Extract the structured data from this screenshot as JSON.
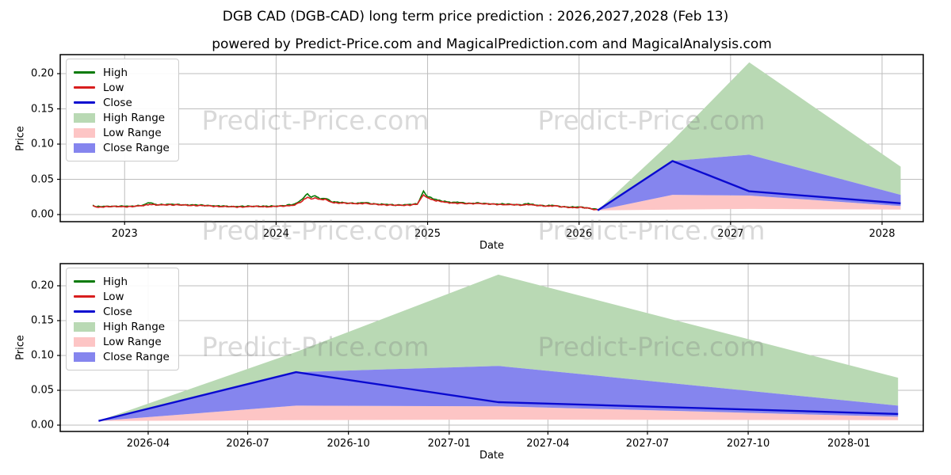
{
  "title": "DGB CAD (DGB-CAD) long term price prediction : 2026,2027,2028 (Feb 13)",
  "subtitle": "powered by Predict-Price.com and MagicalPrediction.com and MagicalAnalysis.com",
  "watermark": "Predict-Price.com",
  "colors": {
    "high_line": "#067a06",
    "low_line": "#d81e1e",
    "close_line": "#0a0ad0",
    "high_range_fill": "#b9d9b4",
    "low_range_fill": "#fdc5c5",
    "close_range_fill": "#8585ee",
    "grid": "#bdbdbd",
    "spine": "#000000",
    "watermark_gray": "#7a7a7a"
  },
  "legend": [
    {
      "label": "High",
      "swatch": "line",
      "color": "#067a06"
    },
    {
      "label": "Low",
      "swatch": "line",
      "color": "#d81e1e"
    },
    {
      "label": "Close",
      "swatch": "line",
      "color": "#0a0ad0"
    },
    {
      "label": "High Range",
      "swatch": "patch",
      "color": "#b9d9b4"
    },
    {
      "label": "Low Range",
      "swatch": "patch",
      "color": "#fdc5c5"
    },
    {
      "label": "Close Range",
      "swatch": "patch",
      "color": "#8585ee"
    }
  ],
  "chart_data": [
    {
      "type": "line",
      "name": "long-term-history-and-forecast",
      "xlabel": "Date",
      "ylabel": "Price",
      "x_axis": {
        "min": 2022.575,
        "max": 2028.272,
        "ticks": [
          {
            "t": 2023,
            "label": "2023"
          },
          {
            "t": 2024,
            "label": "2024"
          },
          {
            "t": 2025,
            "label": "2025"
          },
          {
            "t": 2026,
            "label": "2026"
          },
          {
            "t": 2027,
            "label": "2027"
          },
          {
            "t": 2028,
            "label": "2028"
          }
        ]
      },
      "y_axis": {
        "min": -0.0101,
        "max": 0.227,
        "ticks": [
          {
            "v": 0.0,
            "label": "0.00"
          },
          {
            "v": 0.05,
            "label": "0.05"
          },
          {
            "v": 0.1,
            "label": "0.10"
          },
          {
            "v": 0.15,
            "label": "0.15"
          },
          {
            "v": 0.2,
            "label": "0.20"
          }
        ]
      },
      "history": [
        [
          2022.79,
          0.013,
          0.0135
        ],
        [
          2022.815,
          0.0105,
          0.011
        ],
        [
          2022.873,
          0.011,
          0.0115
        ],
        [
          2022.957,
          0.0115,
          0.012
        ],
        [
          2023.04,
          0.011,
          0.0115
        ],
        [
          2023.123,
          0.013,
          0.0135
        ],
        [
          2023.165,
          0.0145,
          0.017
        ],
        [
          2023.207,
          0.0135,
          0.014
        ],
        [
          2023.29,
          0.014,
          0.0145
        ],
        [
          2023.373,
          0.0135,
          0.014
        ],
        [
          2023.457,
          0.013,
          0.0135
        ],
        [
          2023.54,
          0.0125,
          0.013
        ],
        [
          2023.623,
          0.0115,
          0.012
        ],
        [
          2023.707,
          0.011,
          0.0115
        ],
        [
          2023.79,
          0.011,
          0.0115
        ],
        [
          2023.873,
          0.0115,
          0.012
        ],
        [
          2023.957,
          0.011,
          0.0115
        ],
        [
          2024.04,
          0.012,
          0.0125
        ],
        [
          2024.123,
          0.0135,
          0.0145
        ],
        [
          2024.173,
          0.019,
          0.022
        ],
        [
          2024.207,
          0.025,
          0.03
        ],
        [
          2024.232,
          0.022,
          0.024
        ],
        [
          2024.257,
          0.024,
          0.027
        ],
        [
          2024.29,
          0.021,
          0.022
        ],
        [
          2024.323,
          0.0215,
          0.0235
        ],
        [
          2024.373,
          0.017,
          0.018
        ],
        [
          2024.457,
          0.016,
          0.0165
        ],
        [
          2024.54,
          0.0155,
          0.016
        ],
        [
          2024.582,
          0.016,
          0.017
        ],
        [
          2024.623,
          0.015,
          0.0155
        ],
        [
          2024.707,
          0.014,
          0.0145
        ],
        [
          2024.79,
          0.013,
          0.0135
        ],
        [
          2024.873,
          0.0135,
          0.014
        ],
        [
          2024.932,
          0.0145,
          0.015
        ],
        [
          2024.973,
          0.028,
          0.033
        ],
        [
          2024.998,
          0.024,
          0.026
        ],
        [
          2025.023,
          0.022,
          0.0235
        ],
        [
          2025.057,
          0.0195,
          0.021
        ],
        [
          2025.09,
          0.0185,
          0.0195
        ],
        [
          2025.123,
          0.017,
          0.0185
        ],
        [
          2025.165,
          0.0165,
          0.017
        ],
        [
          2025.207,
          0.016,
          0.0175
        ],
        [
          2025.248,
          0.0155,
          0.016
        ],
        [
          2025.29,
          0.0155,
          0.016
        ],
        [
          2025.332,
          0.016,
          0.0165
        ],
        [
          2025.373,
          0.015,
          0.0155
        ],
        [
          2025.457,
          0.0145,
          0.015
        ],
        [
          2025.54,
          0.014,
          0.0145
        ],
        [
          2025.623,
          0.0135,
          0.014
        ],
        [
          2025.665,
          0.0145,
          0.0155
        ],
        [
          2025.707,
          0.013,
          0.0135
        ],
        [
          2025.79,
          0.012,
          0.0125
        ],
        [
          2025.832,
          0.0125,
          0.013
        ],
        [
          2025.873,
          0.011,
          0.0115
        ],
        [
          2025.915,
          0.0105,
          0.011
        ],
        [
          2025.957,
          0.01,
          0.0105
        ],
        [
          2026.015,
          0.01,
          0.0105
        ],
        [
          2026.057,
          0.009,
          0.0095
        ],
        [
          2026.098,
          0.0075,
          0.008
        ],
        [
          2026.123,
          0.007,
          0.007
        ]
      ],
      "prediction": {
        "x": [
          2026.123,
          2026.617,
          2027.123,
          2028.123
        ],
        "dates": [
          "2026-02-13",
          "2026-08-13",
          "2027-02-13",
          "2028-02-13"
        ],
        "close": [
          0.006,
          0.076,
          0.033,
          0.016
        ],
        "close_range_top": [
          0.006,
          0.076,
          0.085,
          0.028
        ],
        "low_range_top": [
          0.006,
          0.028,
          0.027,
          0.012
        ],
        "low_range_bottom": [
          0.006,
          0.007,
          0.008,
          0.007
        ],
        "high_range_top": [
          0.006,
          0.105,
          0.216,
          0.068
        ]
      }
    },
    {
      "type": "line",
      "name": "forecast-detail",
      "xlabel": "Date",
      "ylabel": "Price",
      "x_axis": {
        "min": 2026.027,
        "max": 2028.186,
        "ticks": [
          {
            "t": 2026.247,
            "label": "2026-04"
          },
          {
            "t": 2026.496,
            "label": "2026-07"
          },
          {
            "t": 2026.748,
            "label": "2026-10"
          },
          {
            "t": 2027.0,
            "label": "2027-01"
          },
          {
            "t": 2027.247,
            "label": "2027-04"
          },
          {
            "t": 2027.496,
            "label": "2027-07"
          },
          {
            "t": 2027.748,
            "label": "2027-10"
          },
          {
            "t": 2028.0,
            "label": "2028-01"
          }
        ]
      },
      "y_axis": {
        "min": -0.0091,
        "max": 0.2318,
        "ticks": [
          {
            "v": 0.0,
            "label": "0.00"
          },
          {
            "v": 0.05,
            "label": "0.05"
          },
          {
            "v": 0.1,
            "label": "0.10"
          },
          {
            "v": 0.15,
            "label": "0.15"
          },
          {
            "v": 0.2,
            "label": "0.20"
          }
        ]
      },
      "prediction": {
        "x": [
          2026.123,
          2026.617,
          2027.123,
          2028.123
        ],
        "dates": [
          "2026-02-13",
          "2026-08-13",
          "2027-02-13",
          "2028-02-13"
        ],
        "close": [
          0.006,
          0.076,
          0.033,
          0.016
        ],
        "close_range_top": [
          0.006,
          0.076,
          0.085,
          0.028
        ],
        "low_range_top": [
          0.006,
          0.028,
          0.027,
          0.012
        ],
        "low_range_bottom": [
          0.006,
          0.007,
          0.008,
          0.007
        ],
        "high_range_top": [
          0.006,
          0.105,
          0.216,
          0.068
        ]
      }
    }
  ]
}
